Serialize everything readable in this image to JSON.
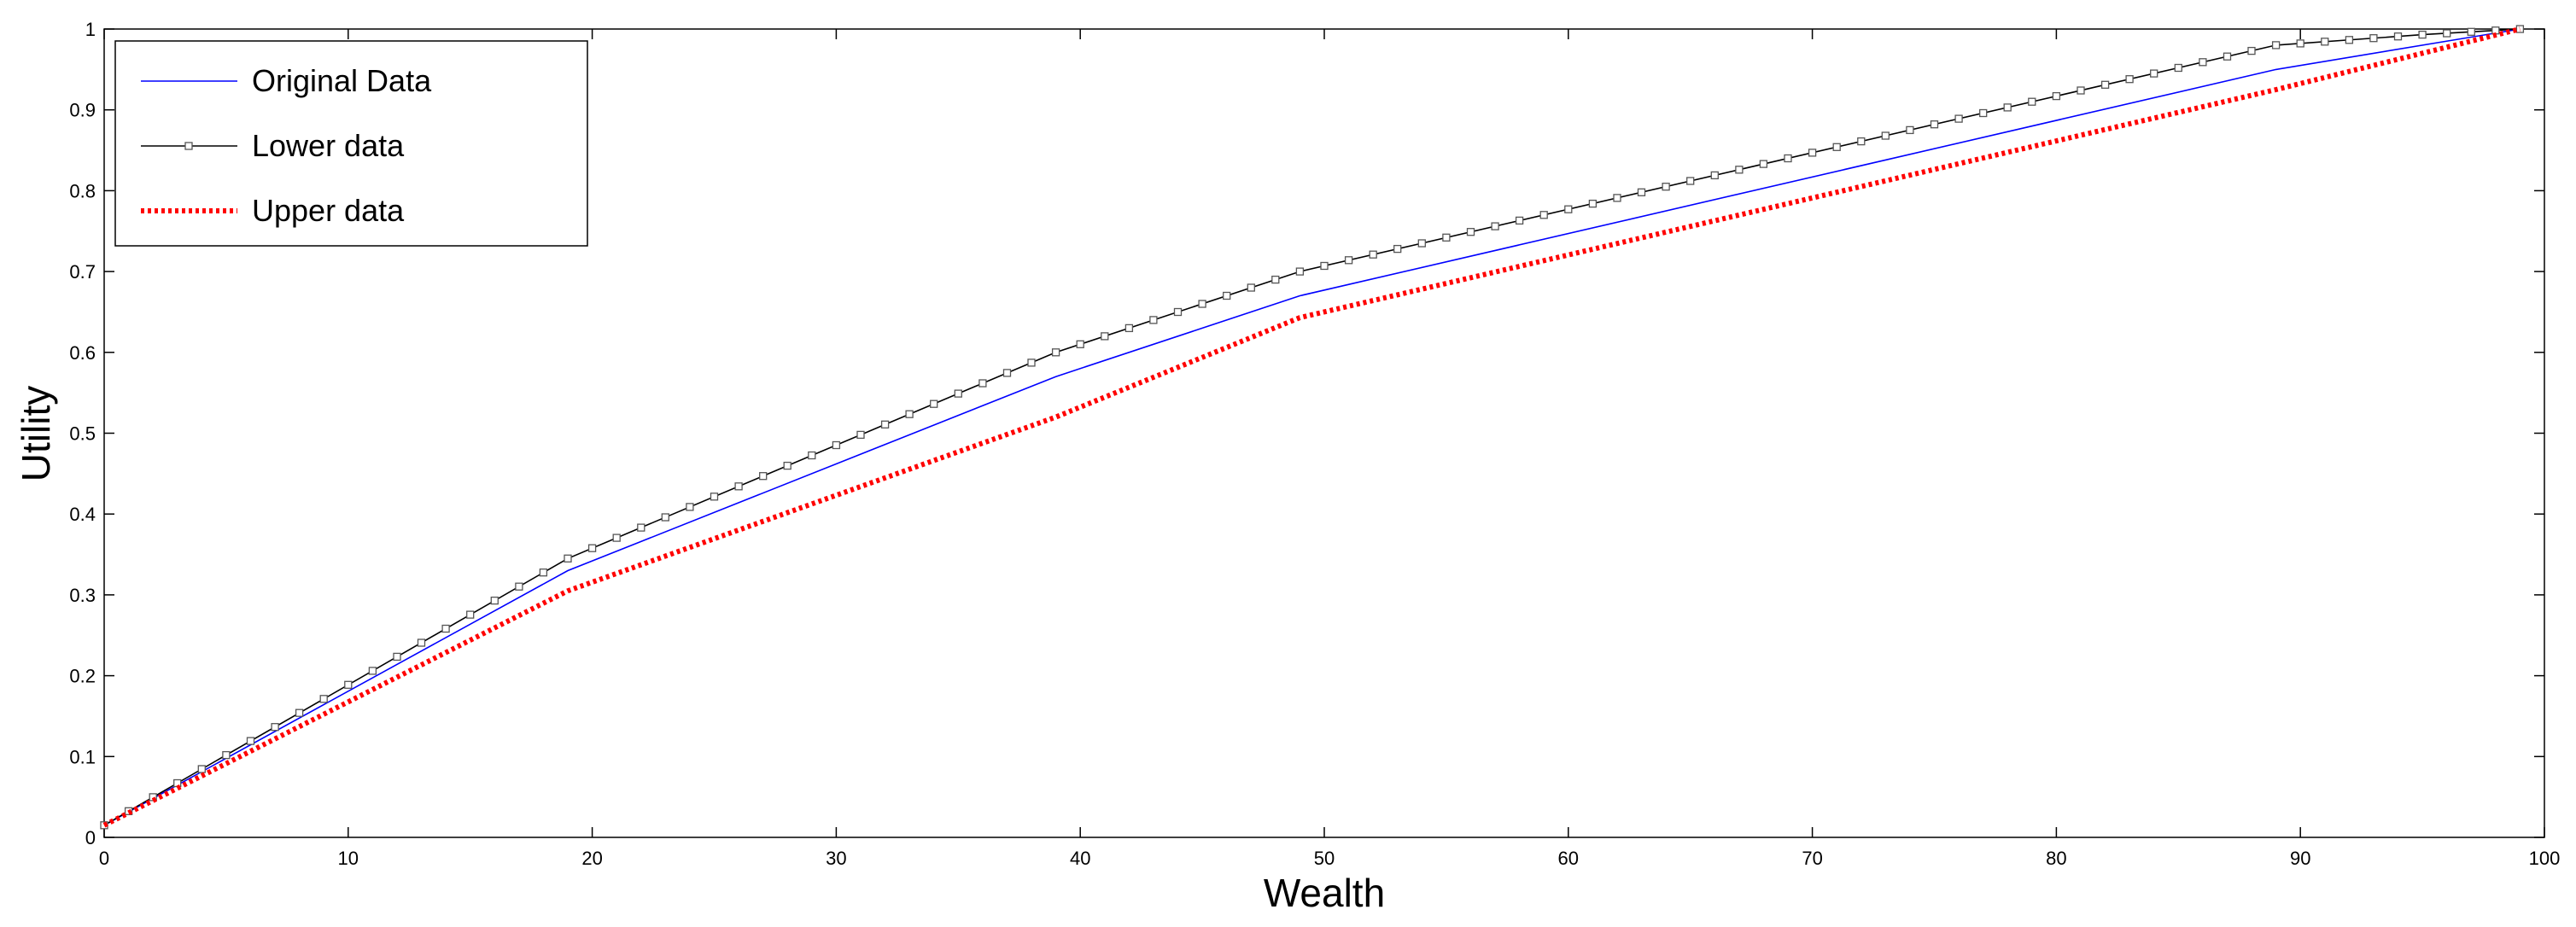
{
  "chart_data": {
    "type": "line",
    "title": "",
    "xlabel": "Wealth",
    "ylabel": "Utility",
    "xlim": [
      0,
      100
    ],
    "ylim": [
      0,
      1
    ],
    "xticks": [
      0,
      10,
      20,
      30,
      40,
      50,
      60,
      70,
      80,
      90,
      100
    ],
    "yticks": [
      0,
      0.1,
      0.2,
      0.3,
      0.4,
      0.5,
      0.6,
      0.7,
      0.8,
      0.9,
      1
    ],
    "xtick_labels": [
      "0",
      "10",
      "20",
      "30",
      "40",
      "50",
      "60",
      "70",
      "80",
      "90",
      "100"
    ],
    "ytick_labels": [
      "0",
      "0.1",
      "0.2",
      "0.3",
      "0.4",
      "0.5",
      "0.6",
      "0.7",
      "0.8",
      "0.9",
      "1"
    ],
    "grid": false,
    "legend_position": "top-left",
    "series": [
      {
        "name": "Original Data",
        "color": "#0000ff",
        "style": "solid",
        "marker": "none",
        "x": [
          0,
          19,
          39,
          49,
          89,
          99
        ],
        "y": [
          0.015,
          0.33,
          0.57,
          0.67,
          0.95,
          1.0
        ]
      },
      {
        "name": "Lower data",
        "color": "#000000",
        "style": "solid",
        "marker": "square",
        "x": [
          0,
          19,
          39,
          49,
          89,
          95,
          99
        ],
        "y": [
          0.015,
          0.345,
          0.6,
          0.7,
          0.98,
          0.993,
          1.0
        ]
      },
      {
        "name": "Upper data",
        "color": "#ff0000",
        "style": "dotted",
        "marker": "none",
        "x": [
          0,
          19,
          39,
          49,
          89,
          99
        ],
        "y": [
          0.015,
          0.305,
          0.52,
          0.643,
          0.925,
          1.0
        ]
      }
    ]
  }
}
